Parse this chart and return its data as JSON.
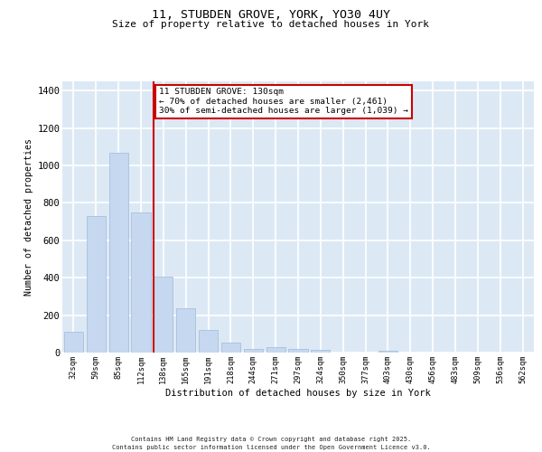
{
  "title1": "11, STUBDEN GROVE, YORK, YO30 4UY",
  "title2": "Size of property relative to detached houses in York",
  "xlabel": "Distribution of detached houses by size in York",
  "ylabel": "Number of detached properties",
  "categories": [
    "32sqm",
    "59sqm",
    "85sqm",
    "112sqm",
    "138sqm",
    "165sqm",
    "191sqm",
    "218sqm",
    "244sqm",
    "271sqm",
    "297sqm",
    "324sqm",
    "350sqm",
    "377sqm",
    "403sqm",
    "430sqm",
    "456sqm",
    "483sqm",
    "509sqm",
    "536sqm",
    "562sqm"
  ],
  "values": [
    110,
    730,
    1070,
    750,
    405,
    235,
    120,
    52,
    20,
    28,
    20,
    15,
    0,
    0,
    12,
    0,
    0,
    0,
    0,
    0,
    0
  ],
  "bar_color": "#c5d8f0",
  "bar_edge_color": "#a0b8d8",
  "vline_bin_index": 4,
  "vline_color": "#cc0000",
  "annotation_line1": "11 STUBDEN GROVE: 130sqm",
  "annotation_line2": "← 70% of detached houses are smaller (2,461)",
  "annotation_line3": "30% of semi-detached houses are larger (1,039) →",
  "annotation_box_edgecolor": "#cc0000",
  "ylim": [
    0,
    1450
  ],
  "yticks": [
    0,
    200,
    400,
    600,
    800,
    1000,
    1200,
    1400
  ],
  "background_color": "#dce9f5",
  "grid_color": "#ffffff",
  "footer1": "Contains HM Land Registry data © Crown copyright and database right 2025.",
  "footer2": "Contains public sector information licensed under the Open Government Licence v3.0."
}
